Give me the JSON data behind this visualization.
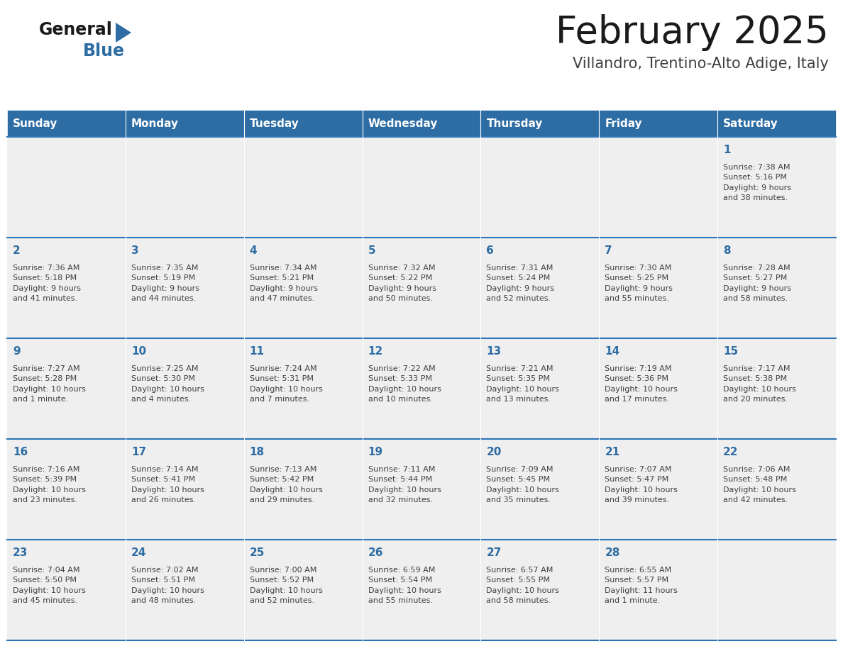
{
  "title": "February 2025",
  "subtitle": "Villandro, Trentino-Alto Adige, Italy",
  "days_of_week": [
    "Sunday",
    "Monday",
    "Tuesday",
    "Wednesday",
    "Thursday",
    "Friday",
    "Saturday"
  ],
  "header_bg": "#2E6DA4",
  "header_text": "#FFFFFF",
  "cell_bg": "#EFEFEF",
  "border_color": "#2E75B6",
  "day_num_color": "#2E6DA4",
  "text_color": "#404040",
  "title_color": "#1a1a1a",
  "subtitle_color": "#404040",
  "logo_general_color": "#1a1a1a",
  "logo_blue_color": "#2E6DA4",
  "weeks": [
    [
      {
        "day": null,
        "info": ""
      },
      {
        "day": null,
        "info": ""
      },
      {
        "day": null,
        "info": ""
      },
      {
        "day": null,
        "info": ""
      },
      {
        "day": null,
        "info": ""
      },
      {
        "day": null,
        "info": ""
      },
      {
        "day": 1,
        "info": "Sunrise: 7:38 AM\nSunset: 5:16 PM\nDaylight: 9 hours\nand 38 minutes."
      }
    ],
    [
      {
        "day": 2,
        "info": "Sunrise: 7:36 AM\nSunset: 5:18 PM\nDaylight: 9 hours\nand 41 minutes."
      },
      {
        "day": 3,
        "info": "Sunrise: 7:35 AM\nSunset: 5:19 PM\nDaylight: 9 hours\nand 44 minutes."
      },
      {
        "day": 4,
        "info": "Sunrise: 7:34 AM\nSunset: 5:21 PM\nDaylight: 9 hours\nand 47 minutes."
      },
      {
        "day": 5,
        "info": "Sunrise: 7:32 AM\nSunset: 5:22 PM\nDaylight: 9 hours\nand 50 minutes."
      },
      {
        "day": 6,
        "info": "Sunrise: 7:31 AM\nSunset: 5:24 PM\nDaylight: 9 hours\nand 52 minutes."
      },
      {
        "day": 7,
        "info": "Sunrise: 7:30 AM\nSunset: 5:25 PM\nDaylight: 9 hours\nand 55 minutes."
      },
      {
        "day": 8,
        "info": "Sunrise: 7:28 AM\nSunset: 5:27 PM\nDaylight: 9 hours\nand 58 minutes."
      }
    ],
    [
      {
        "day": 9,
        "info": "Sunrise: 7:27 AM\nSunset: 5:28 PM\nDaylight: 10 hours\nand 1 minute."
      },
      {
        "day": 10,
        "info": "Sunrise: 7:25 AM\nSunset: 5:30 PM\nDaylight: 10 hours\nand 4 minutes."
      },
      {
        "day": 11,
        "info": "Sunrise: 7:24 AM\nSunset: 5:31 PM\nDaylight: 10 hours\nand 7 minutes."
      },
      {
        "day": 12,
        "info": "Sunrise: 7:22 AM\nSunset: 5:33 PM\nDaylight: 10 hours\nand 10 minutes."
      },
      {
        "day": 13,
        "info": "Sunrise: 7:21 AM\nSunset: 5:35 PM\nDaylight: 10 hours\nand 13 minutes."
      },
      {
        "day": 14,
        "info": "Sunrise: 7:19 AM\nSunset: 5:36 PM\nDaylight: 10 hours\nand 17 minutes."
      },
      {
        "day": 15,
        "info": "Sunrise: 7:17 AM\nSunset: 5:38 PM\nDaylight: 10 hours\nand 20 minutes."
      }
    ],
    [
      {
        "day": 16,
        "info": "Sunrise: 7:16 AM\nSunset: 5:39 PM\nDaylight: 10 hours\nand 23 minutes."
      },
      {
        "day": 17,
        "info": "Sunrise: 7:14 AM\nSunset: 5:41 PM\nDaylight: 10 hours\nand 26 minutes."
      },
      {
        "day": 18,
        "info": "Sunrise: 7:13 AM\nSunset: 5:42 PM\nDaylight: 10 hours\nand 29 minutes."
      },
      {
        "day": 19,
        "info": "Sunrise: 7:11 AM\nSunset: 5:44 PM\nDaylight: 10 hours\nand 32 minutes."
      },
      {
        "day": 20,
        "info": "Sunrise: 7:09 AM\nSunset: 5:45 PM\nDaylight: 10 hours\nand 35 minutes."
      },
      {
        "day": 21,
        "info": "Sunrise: 7:07 AM\nSunset: 5:47 PM\nDaylight: 10 hours\nand 39 minutes."
      },
      {
        "day": 22,
        "info": "Sunrise: 7:06 AM\nSunset: 5:48 PM\nDaylight: 10 hours\nand 42 minutes."
      }
    ],
    [
      {
        "day": 23,
        "info": "Sunrise: 7:04 AM\nSunset: 5:50 PM\nDaylight: 10 hours\nand 45 minutes."
      },
      {
        "day": 24,
        "info": "Sunrise: 7:02 AM\nSunset: 5:51 PM\nDaylight: 10 hours\nand 48 minutes."
      },
      {
        "day": 25,
        "info": "Sunrise: 7:00 AM\nSunset: 5:52 PM\nDaylight: 10 hours\nand 52 minutes."
      },
      {
        "day": 26,
        "info": "Sunrise: 6:59 AM\nSunset: 5:54 PM\nDaylight: 10 hours\nand 55 minutes."
      },
      {
        "day": 27,
        "info": "Sunrise: 6:57 AM\nSunset: 5:55 PM\nDaylight: 10 hours\nand 58 minutes."
      },
      {
        "day": 28,
        "info": "Sunrise: 6:55 AM\nSunset: 5:57 PM\nDaylight: 11 hours\nand 1 minute."
      },
      {
        "day": null,
        "info": ""
      }
    ]
  ]
}
